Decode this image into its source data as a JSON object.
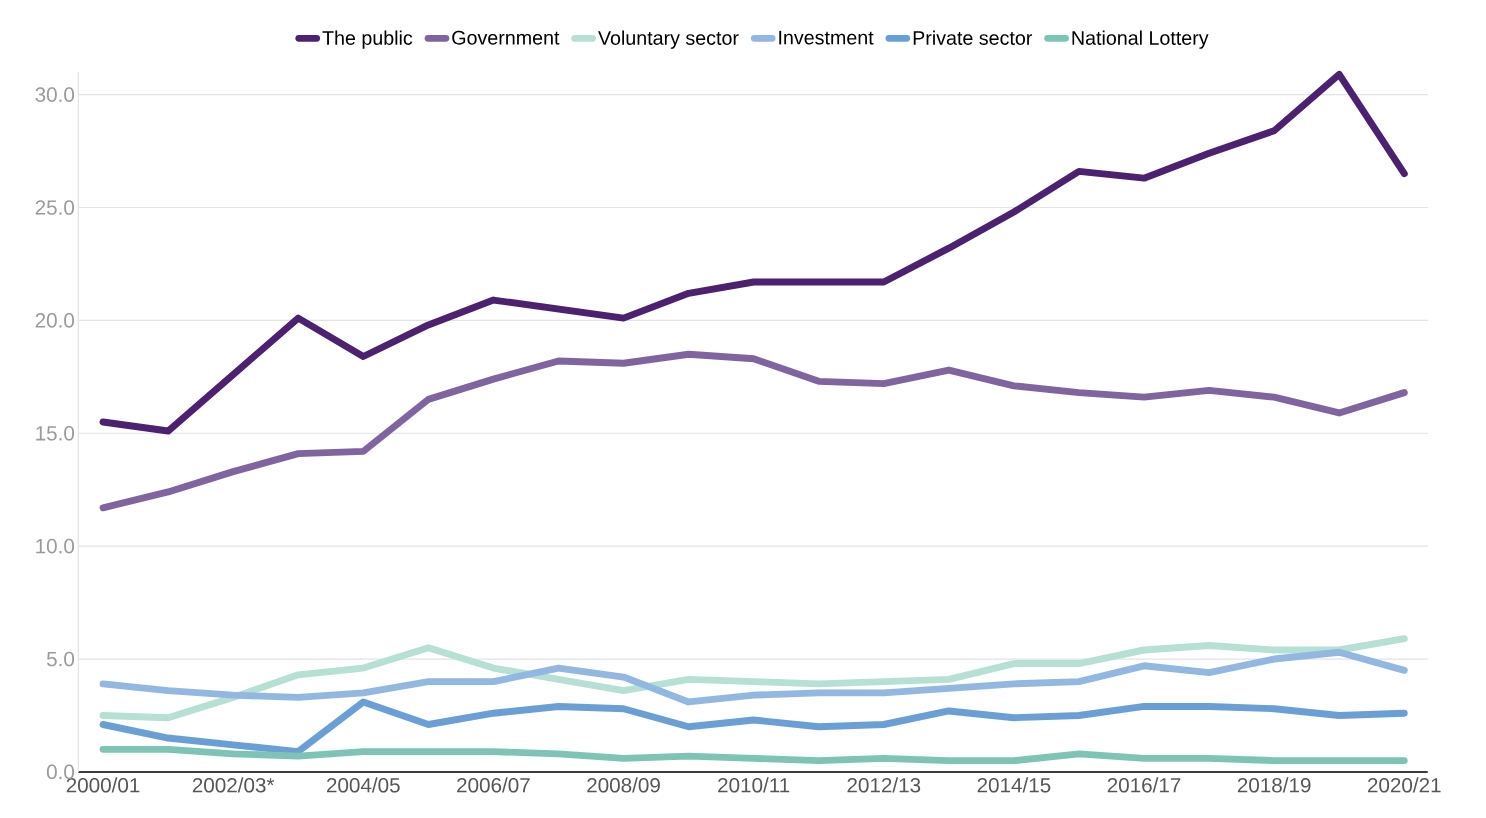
{
  "chart_data": {
    "type": "line",
    "categories": [
      "2000/01",
      null,
      "2002/03*",
      null,
      "2004/05",
      null,
      "2006/07",
      null,
      "2008/09",
      null,
      "2010/11",
      null,
      "2012/13",
      null,
      "2014/15",
      null,
      "2016/17",
      null,
      "2018/19",
      null,
      "2020/21"
    ],
    "series": [
      {
        "name": "The public",
        "color": "#4b2170",
        "values": [
          15.5,
          15.1,
          17.6,
          20.1,
          18.4,
          19.8,
          20.9,
          20.5,
          20.1,
          21.2,
          21.7,
          21.7,
          21.7,
          23.2,
          24.8,
          26.6,
          26.3,
          27.4,
          28.4,
          30.9,
          26.5
        ]
      },
      {
        "name": "Government",
        "color": "#7f64a0",
        "values": [
          11.7,
          12.4,
          13.3,
          14.1,
          14.2,
          16.5,
          17.4,
          18.2,
          18.1,
          18.5,
          18.3,
          17.3,
          17.2,
          17.8,
          17.1,
          16.8,
          16.6,
          16.9,
          16.6,
          15.9,
          16.8
        ]
      },
      {
        "name": "Voluntary sector",
        "color": "#b5e0d3",
        "values": [
          2.5,
          2.4,
          3.3,
          4.3,
          4.6,
          5.5,
          4.6,
          4.1,
          3.6,
          4.1,
          4.0,
          3.9,
          4.0,
          4.1,
          4.8,
          4.8,
          5.4,
          5.6,
          5.4,
          5.4,
          5.9
        ]
      },
      {
        "name": "Investment",
        "color": "#92b8e2",
        "values": [
          3.9,
          3.6,
          3.4,
          3.3,
          3.5,
          4.0,
          4.0,
          4.6,
          4.2,
          3.1,
          3.4,
          3.5,
          3.5,
          3.7,
          3.9,
          4.0,
          4.7,
          4.4,
          5.0,
          5.3,
          4.5
        ]
      },
      {
        "name": "Private sector",
        "color": "#6a9fd6",
        "values": [
          2.1,
          1.5,
          1.2,
          0.9,
          3.1,
          2.1,
          2.6,
          2.9,
          2.8,
          2.0,
          2.3,
          2.0,
          2.1,
          2.7,
          2.4,
          2.5,
          2.9,
          2.9,
          2.8,
          2.5,
          2.6
        ]
      },
      {
        "name": "National Lottery",
        "color": "#7dc4b4",
        "values": [
          1.0,
          1.0,
          0.8,
          0.7,
          0.9,
          0.9,
          0.9,
          0.8,
          0.6,
          0.7,
          0.6,
          0.5,
          0.6,
          0.5,
          0.5,
          0.8,
          0.6,
          0.6,
          0.5,
          0.5,
          0.5
        ]
      }
    ],
    "ylim": [
      0,
      31
    ],
    "yticks": [
      {
        "value": 0,
        "label": "0.0"
      },
      {
        "value": 5,
        "label": "5.0"
      },
      {
        "value": 10,
        "label": "10.0"
      },
      {
        "value": 15,
        "label": "15.0"
      },
      {
        "value": 20,
        "label": "20.0"
      },
      {
        "value": 25,
        "label": "25.0"
      },
      {
        "value": 30,
        "label": "30.0"
      }
    ],
    "grid": "y",
    "legend": "top",
    "marker": "none",
    "line_style": "solid"
  }
}
